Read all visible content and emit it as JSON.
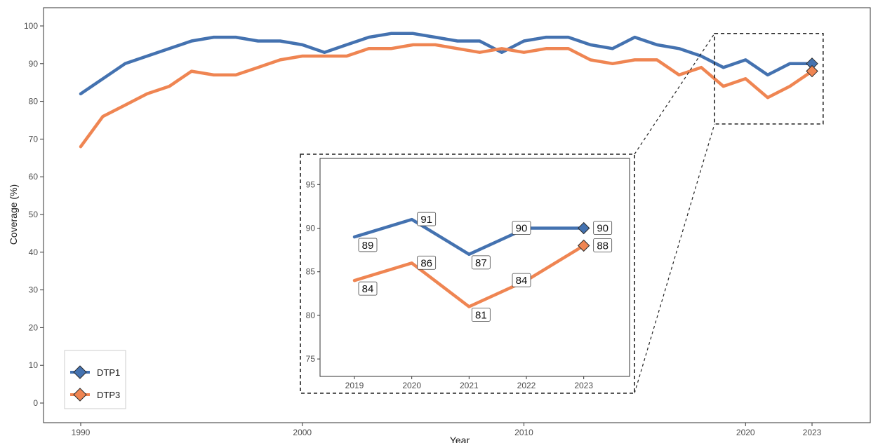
{
  "chart_data": {
    "type": "line",
    "xlabel": "Year",
    "ylabel": "Coverage  (%)",
    "xlim": [
      1990,
      2023
    ],
    "ylim": [
      0,
      100
    ],
    "x_ticks": [
      1990,
      2000,
      2010,
      2020,
      2023
    ],
    "y_ticks": [
      0,
      10,
      20,
      30,
      40,
      50,
      60,
      70,
      80,
      90,
      100
    ],
    "legend_position": "bottom-left",
    "grid": false,
    "x": [
      1990,
      1991,
      1992,
      1993,
      1994,
      1995,
      1996,
      1997,
      1998,
      1999,
      2000,
      2001,
      2002,
      2003,
      2004,
      2005,
      2006,
      2007,
      2008,
      2009,
      2010,
      2011,
      2012,
      2013,
      2014,
      2015,
      2016,
      2017,
      2018,
      2019,
      2020,
      2021,
      2022,
      2023
    ],
    "series": [
      {
        "name": "DTP1",
        "color": "#4472b0",
        "values": [
          82,
          86,
          90,
          92,
          94,
          96,
          97,
          97,
          96,
          96,
          95,
          93,
          95,
          97,
          98,
          98,
          97,
          96,
          96,
          93,
          96,
          97,
          97,
          95,
          94,
          97,
          95,
          94,
          92,
          89,
          91,
          87,
          90,
          90
        ]
      },
      {
        "name": "DTP3",
        "color": "#ef8552",
        "values": [
          68,
          76,
          79,
          82,
          84,
          88,
          87,
          87,
          89,
          91,
          92,
          92,
          92,
          94,
          94,
          95,
          95,
          94,
          93,
          94,
          93,
          94,
          94,
          91,
          90,
          91,
          91,
          87,
          89,
          84,
          86,
          81,
          84,
          88
        ]
      }
    ],
    "inset": {
      "xlim": [
        2018.4,
        2023.8
      ],
      "ylim": [
        73,
        98
      ],
      "x_ticks": [
        2019,
        2020,
        2021,
        2022,
        2023
      ],
      "y_ticks": [
        75,
        80,
        85,
        90,
        95
      ],
      "x": [
        2019,
        2020,
        2021,
        2022,
        2023
      ],
      "series": [
        {
          "name": "DTP1",
          "values": [
            89,
            91,
            87,
            90,
            90
          ],
          "labels": [
            "89",
            "91",
            "87",
            "90",
            "90"
          ]
        },
        {
          "name": "DTP3",
          "values": [
            84,
            86,
            81,
            84,
            88
          ],
          "labels": [
            "84",
            "86",
            "81",
            "84",
            "88"
          ]
        }
      ],
      "zoom_region": {
        "x": [
          2018.6,
          2023.5
        ],
        "y": [
          74,
          98
        ]
      }
    }
  }
}
